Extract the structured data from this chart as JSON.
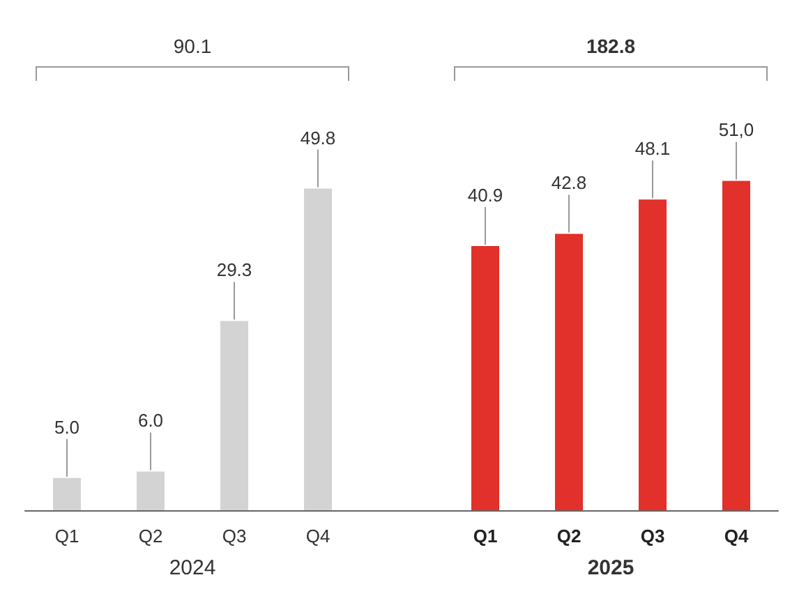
{
  "chart_data": {
    "type": "bar",
    "categories": [
      "Q1",
      "Q2",
      "Q3",
      "Q4",
      null,
      "Q1",
      "Q2",
      "Q3",
      "Q4"
    ],
    "values": [
      5.0,
      6.0,
      29.3,
      49.8,
      null,
      40.9,
      42.8,
      48.1,
      51.0
    ],
    "colors": [
      "#d3d3d3",
      "#d3d3d3",
      "#d3d3d3",
      "#d3d3d3",
      null,
      "#e2302a",
      "#e2302a",
      "#e2302a",
      "#e2302a"
    ],
    "value_labels": [
      "5.0",
      "6.0",
      "29.3",
      "49.8",
      null,
      "40.9",
      "42.8",
      "48.1",
      "51,0"
    ],
    "grid": false,
    "annotations": [
      "90.1",
      "182.8",
      "2024",
      "2025"
    ]
  }
}
